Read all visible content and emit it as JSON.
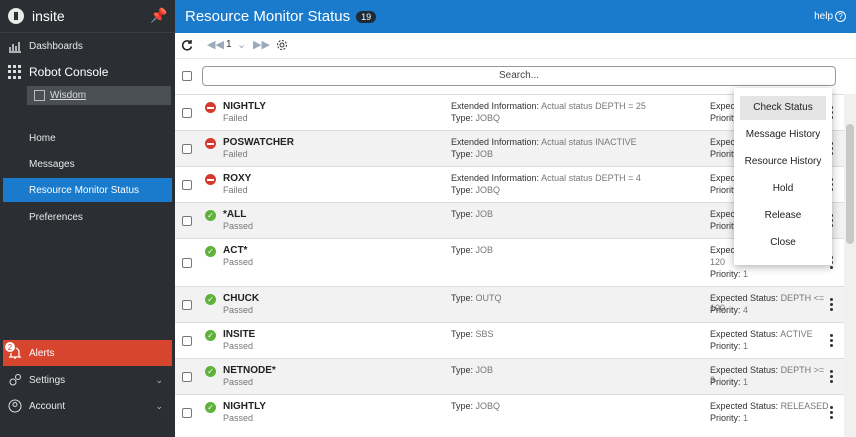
{
  "app": {
    "brand": "insite",
    "pin_icon": "pin-icon"
  },
  "sidebar": {
    "dashboards": "Dashboards",
    "robot_console": "Robot Console",
    "wisdom": "Wisdom",
    "items": [
      {
        "label": "Home"
      },
      {
        "label": "Messages"
      },
      {
        "label": "Resource Monitor Status"
      },
      {
        "label": "Preferences"
      }
    ],
    "alerts": "Alerts",
    "alerts_count": "2",
    "settings": "Settings",
    "account": "Account"
  },
  "header": {
    "title": "Resource Monitor Status",
    "count": "19",
    "help": "help"
  },
  "toolbar": {
    "page": "1"
  },
  "search": {
    "placeholder": "Search..."
  },
  "menu": [
    "Check Status",
    "Message History",
    "Resource History",
    "Hold",
    "Release",
    "Close"
  ],
  "rows": [
    {
      "name": "NIGHTLY",
      "status": "Failed",
      "ext_label": "Extended Information:",
      "ext_value": "Actual status DEPTH = 25",
      "type_label": "Type:",
      "type": "JOBQ",
      "exp_label": "Expected",
      "pri_label": "Priority:"
    },
    {
      "name": "POSWATCHER",
      "status": "Failed",
      "ext_label": "Extended Information:",
      "ext_value": "Actual status INACTIVE",
      "type_label": "Type:",
      "type": "JOB",
      "exp_label": "Expected",
      "pri_label": "Priority:"
    },
    {
      "name": "ROXY",
      "status": "Failed",
      "ext_label": "Extended Information:",
      "ext_value": "Actual status DEPTH = 4",
      "type_label": "Type:",
      "type": "JOBQ",
      "exp_label": "Expected",
      "pri_label": "Priority:"
    },
    {
      "name": "*ALL",
      "status": "Passed",
      "type_label": "Type:",
      "type": "JOB",
      "exp_label": "Expected",
      "pri_label": "Priority:"
    },
    {
      "name": "ACT*",
      "status": "Passed",
      "type_label": "Type:",
      "type": "JOB",
      "exp_label": "Expected",
      "exp_extra": "120",
      "pri_label": "Priority:",
      "priority": "1"
    },
    {
      "name": "CHUCK",
      "status": "Passed",
      "type_label": "Type:",
      "type": "OUTQ",
      "exp_label": "Expected Status:",
      "exp_value": "DEPTH <= 100",
      "pri_label": "Priority:",
      "priority": "4"
    },
    {
      "name": "INSITE",
      "status": "Passed",
      "type_label": "Type:",
      "type": "SBS",
      "exp_label": "Expected Status:",
      "exp_value": "ACTIVE",
      "pri_label": "Priority:",
      "priority": "1"
    },
    {
      "name": "NETNODE*",
      "status": "Passed",
      "type_label": "Type:",
      "type": "JOB",
      "exp_label": "Expected Status:",
      "exp_value": "DEPTH >= 3",
      "pri_label": "Priority:",
      "priority": "1"
    },
    {
      "name": "NIGHTLY",
      "status": "Passed",
      "type_label": "Type:",
      "type": "JOBQ",
      "exp_label": "Expected Status:",
      "exp_value": "RELEASED",
      "pri_label": "Priority:",
      "priority": "1"
    }
  ],
  "colors": {
    "accent": "#1a7acb",
    "sidebar": "#2b2f33",
    "alert": "#d8452f",
    "fail": "#d43a2f",
    "pass": "#5db33b"
  }
}
